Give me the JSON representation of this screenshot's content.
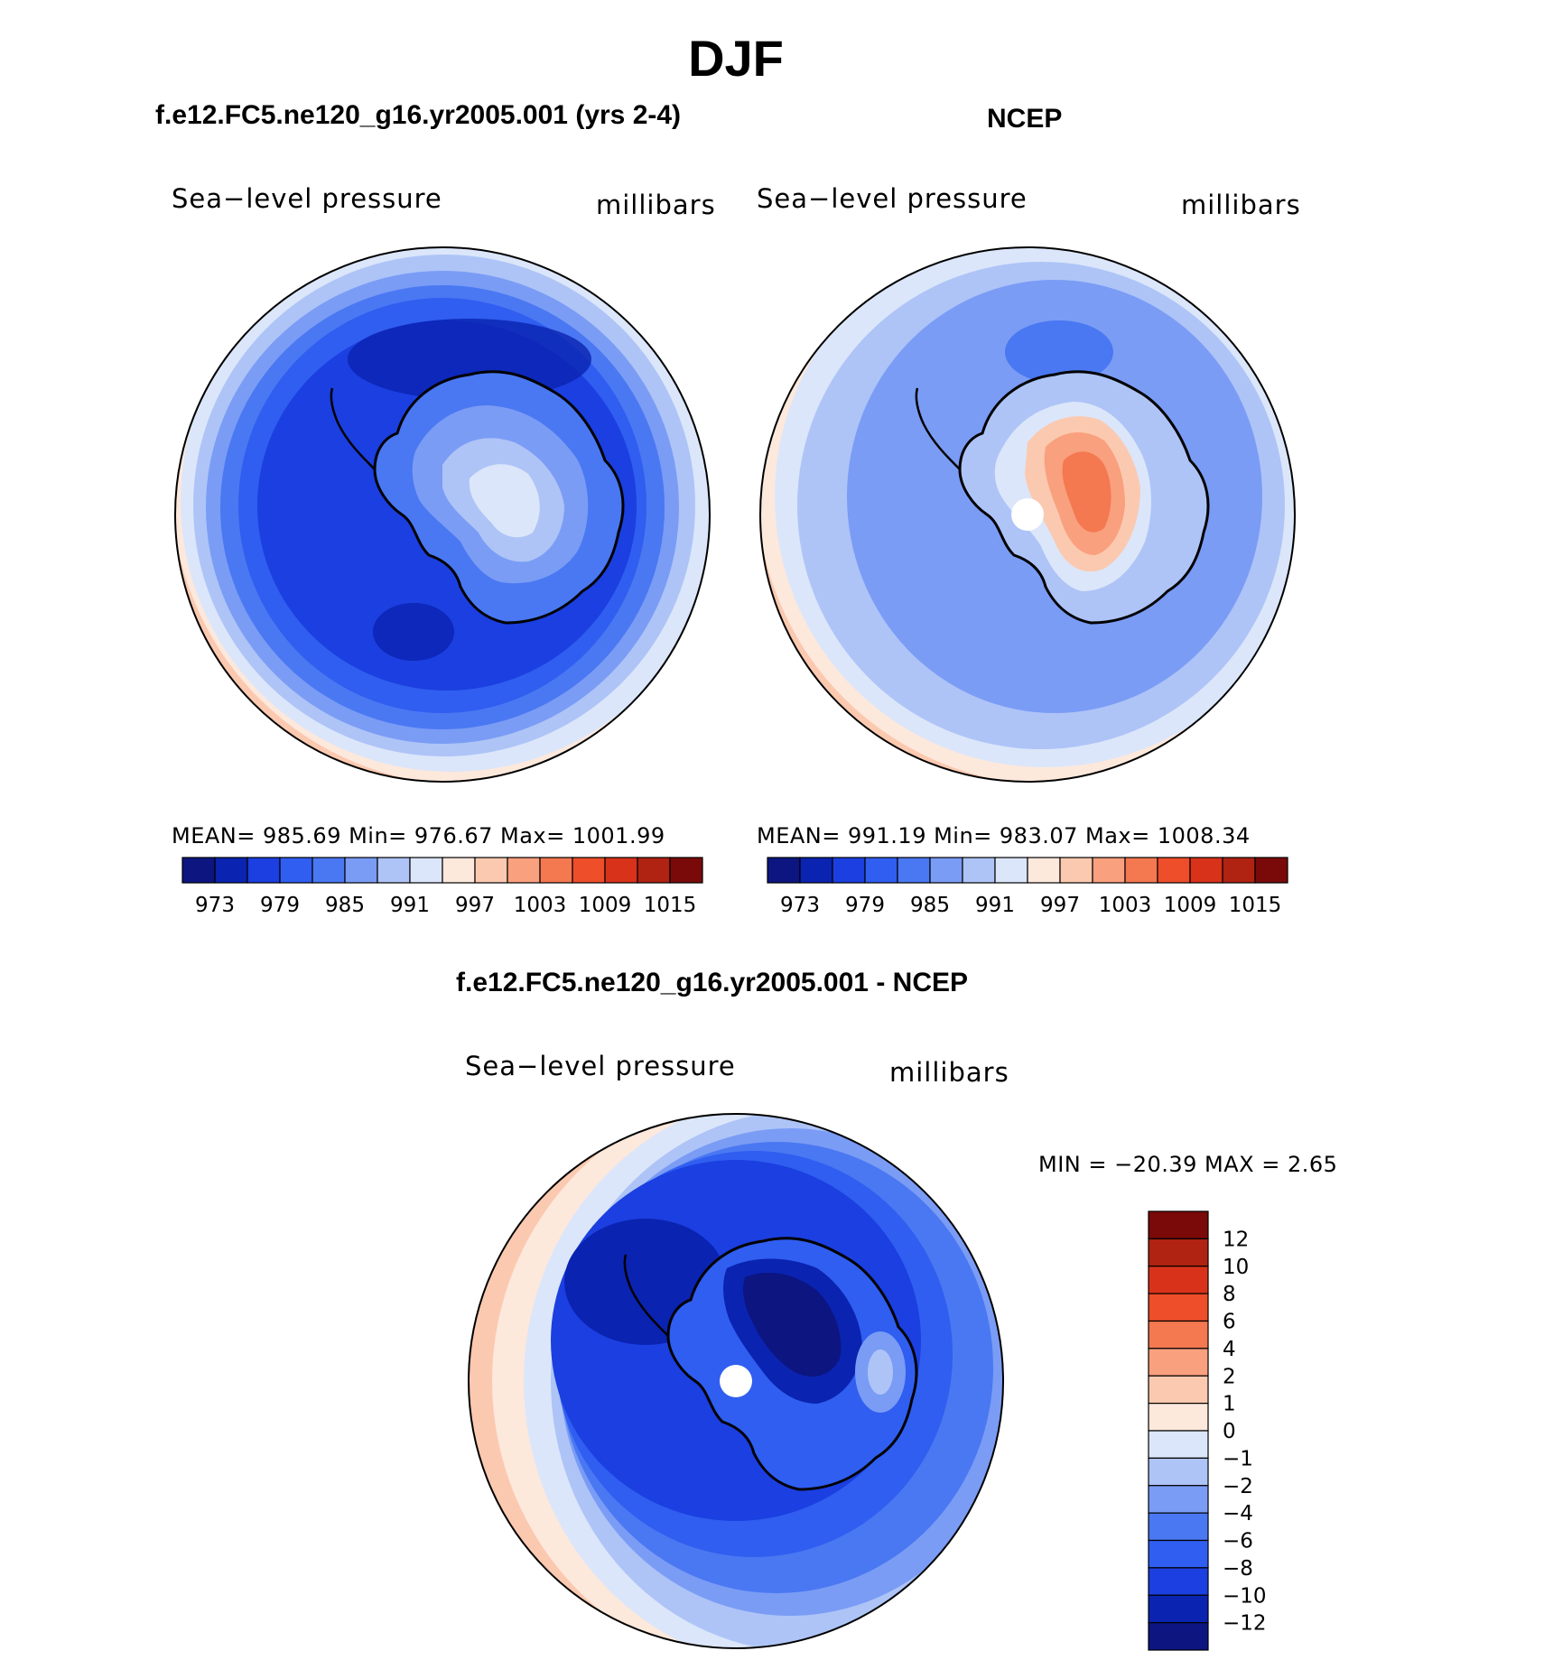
{
  "figure": {
    "season_title": "DJF",
    "diff_title": "f.e12.FC5.ne120_g16.yr2005.001 - NCEP"
  },
  "panels": [
    {
      "id": "model",
      "title": "f.e12.FC5.ne120_g16.yr2005.001 (yrs 2-4)",
      "variable": "Sea−level pressure",
      "units": "millibars",
      "stats_text": "MEAN=  985.69    Min=  976.67    Max=  1001.99",
      "stats": {
        "mean": 985.69,
        "min": 976.67,
        "max": 1001.99
      },
      "levels": [
        "973",
        "979",
        "985",
        "991",
        "997",
        "1003",
        "1009",
        "1015"
      ]
    },
    {
      "id": "obs",
      "title": "NCEP",
      "variable": "Sea−level pressure",
      "units": "millibars",
      "stats_text": "MEAN=  991.19    Min=  983.07    Max=  1008.34",
      "stats": {
        "mean": 991.19,
        "min": 983.07,
        "max": 1008.34
      },
      "levels": [
        "973",
        "979",
        "985",
        "991",
        "997",
        "1003",
        "1009",
        "1015"
      ]
    },
    {
      "id": "diff",
      "title": "f.e12.FC5.ne120_g16.yr2005.001 - NCEP",
      "variable": "Sea−level pressure",
      "units": "millibars",
      "stats_text": "MIN  =  −20.39  MAX  =      2.65",
      "stats": {
        "min": -20.39,
        "max": 2.65
      },
      "levels": [
        "12",
        "10",
        "8",
        "6",
        "4",
        "2",
        "1",
        "0",
        "−1",
        "−2",
        "−4",
        "−6",
        "−8",
        "−10",
        "−12"
      ]
    }
  ],
  "colors": {
    "abs_palette": [
      "#0c1580",
      "#0a23b0",
      "#1b3fe0",
      "#2f5ef0",
      "#4a78f2",
      "#7a9cf5",
      "#aec4f7",
      "#dbe6fa",
      "#fde8dc",
      "#fbc9b0",
      "#f9a07e",
      "#f47850",
      "#ee4e2a",
      "#d9321a",
      "#b02212",
      "#7a0a0a"
    ],
    "diff_palette": [
      "#7a0a0a",
      "#b02212",
      "#d9321a",
      "#ee4e2a",
      "#f47850",
      "#f9a07e",
      "#fbc9b0",
      "#fde8dc",
      "#dbe6fa",
      "#aec4f7",
      "#7a9cf5",
      "#4a78f2",
      "#2f5ef0",
      "#1b3fe0",
      "#0a23b0",
      "#0c1580"
    ]
  }
}
